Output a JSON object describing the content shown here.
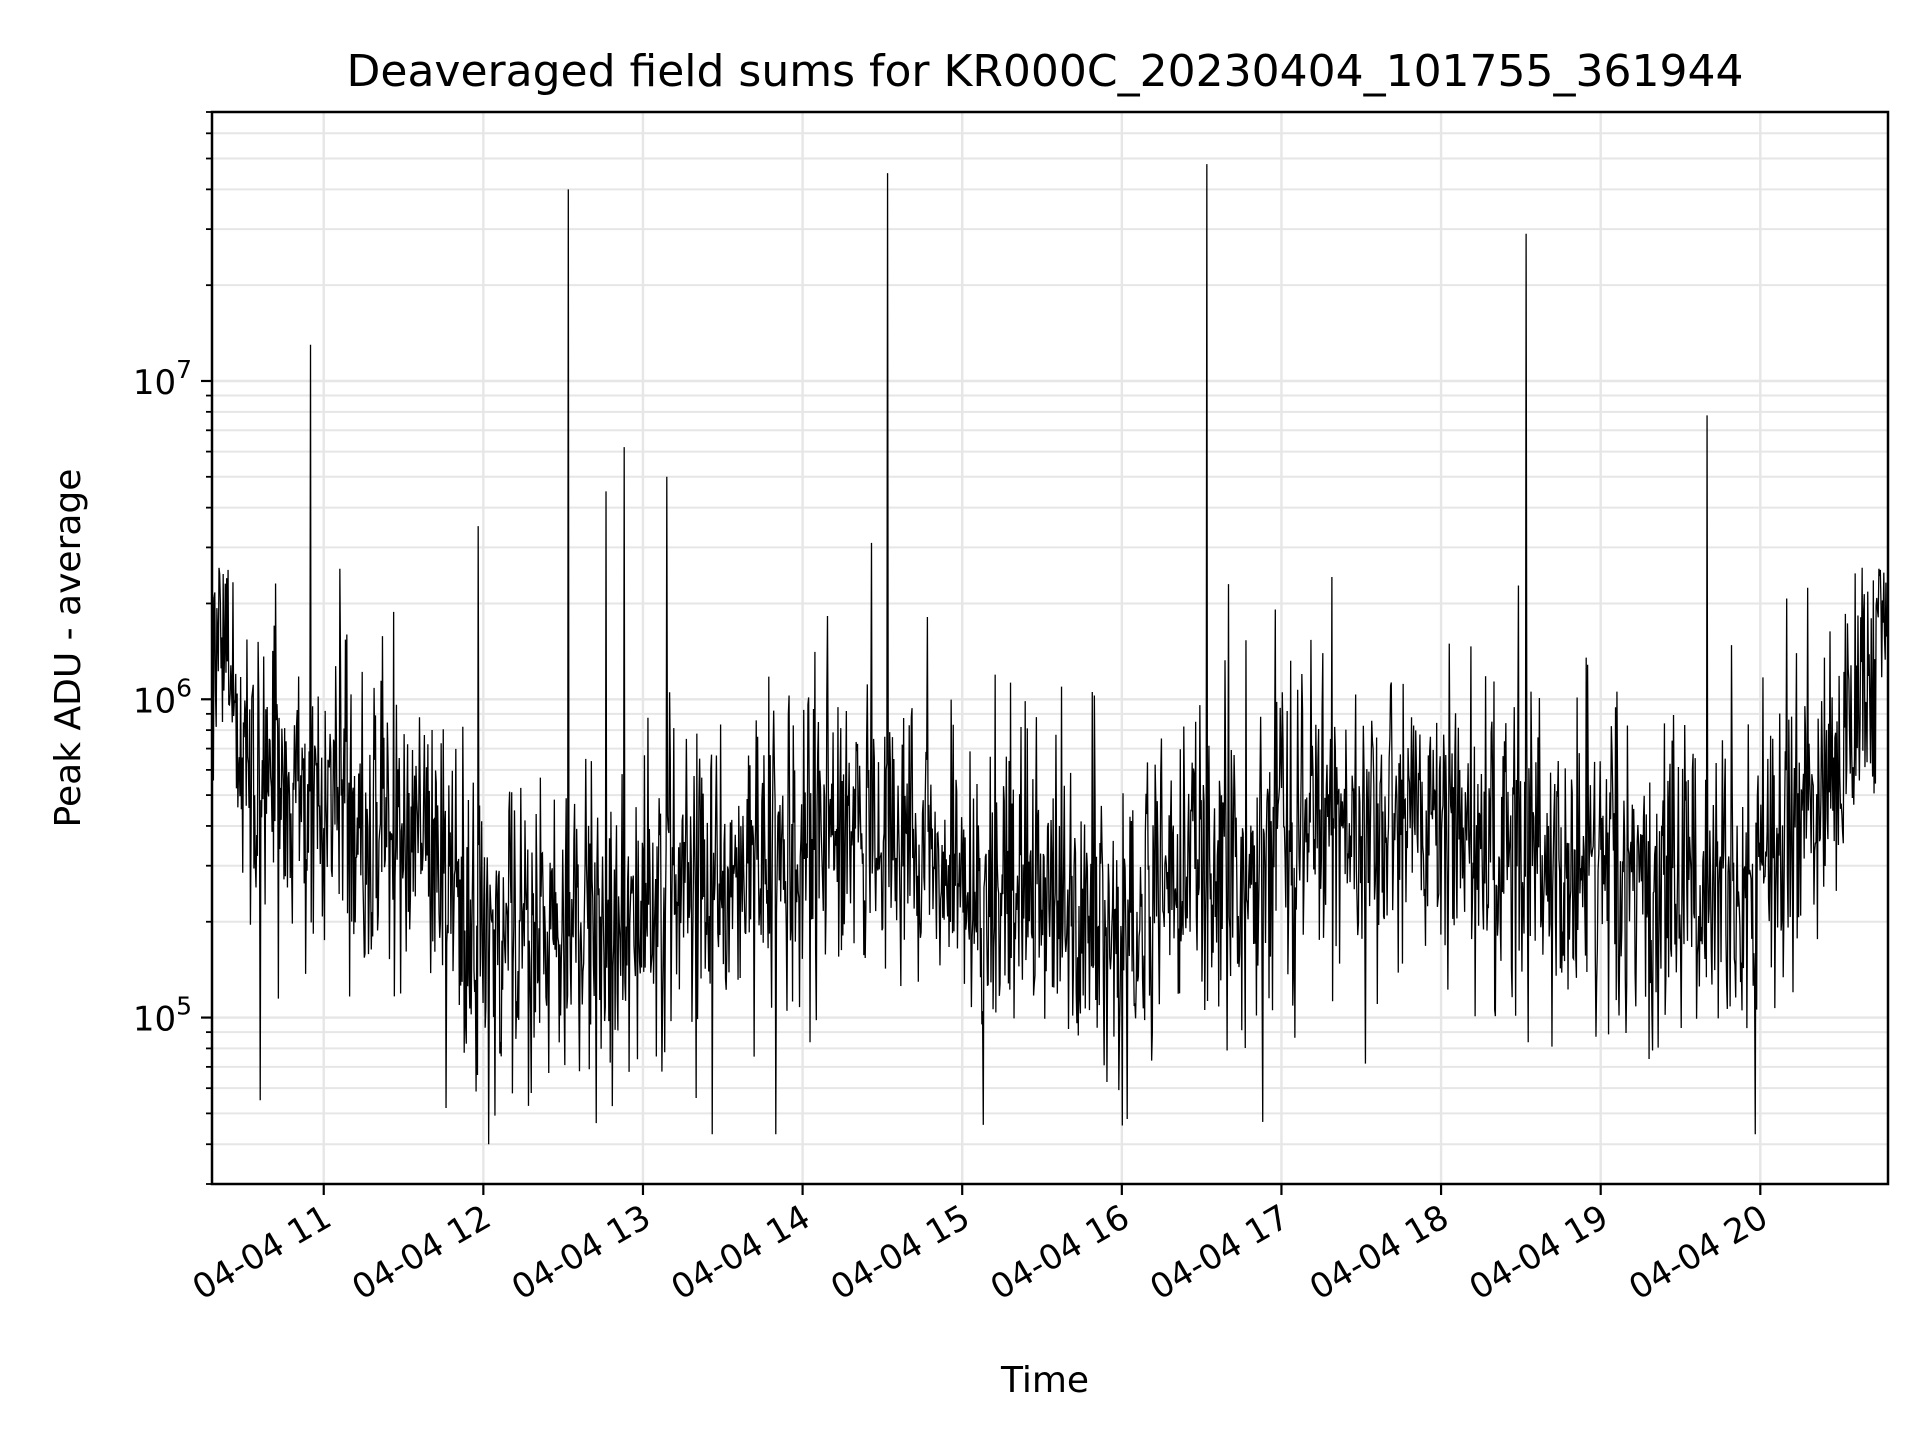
{
  "chart_data": {
    "type": "line",
    "title": "Deaveraged field sums for KR000C_20230404_101755_361944",
    "xlabel": "Time",
    "ylabel": "Peak ADU - average",
    "y_scale": "log",
    "ylim": [
      30000,
      70000000
    ],
    "xlim": [
      "2023-04-04 10:18",
      "2023-04-04 20:48"
    ],
    "grid": true,
    "grid_minor": true,
    "line_color": "#000000",
    "grid_color": "#e6e6e6",
    "x_ticks": [
      {
        "t": "2023-04-04 11:00",
        "label": "04-04 11"
      },
      {
        "t": "2023-04-04 12:00",
        "label": "04-04 12"
      },
      {
        "t": "2023-04-04 13:00",
        "label": "04-04 13"
      },
      {
        "t": "2023-04-04 14:00",
        "label": "04-04 14"
      },
      {
        "t": "2023-04-04 15:00",
        "label": "04-04 15"
      },
      {
        "t": "2023-04-04 16:00",
        "label": "04-04 16"
      },
      {
        "t": "2023-04-04 17:00",
        "label": "04-04 17"
      },
      {
        "t": "2023-04-04 18:00",
        "label": "04-04 18"
      },
      {
        "t": "2023-04-04 19:00",
        "label": "04-04 19"
      },
      {
        "t": "2023-04-04 20:00",
        "label": "04-04 20"
      }
    ],
    "y_ticks": [
      {
        "value": 100000,
        "base": "10",
        "exp": "5"
      },
      {
        "value": 1000000,
        "base": "10",
        "exp": "6"
      },
      {
        "value": 10000000,
        "base": "10",
        "exp": "7"
      }
    ],
    "spikes": [
      {
        "t": "2023-04-04 10:55",
        "value": 13000000
      },
      {
        "t": "2023-04-04 11:58",
        "value": 3500000
      },
      {
        "t": "2023-04-04 12:32",
        "value": 40000000
      },
      {
        "t": "2023-04-04 12:46",
        "value": 4500000
      },
      {
        "t": "2023-04-04 12:53",
        "value": 6200000
      },
      {
        "t": "2023-04-04 13:09",
        "value": 5000000
      },
      {
        "t": "2023-04-04 14:26",
        "value": 3100000
      },
      {
        "t": "2023-04-04 14:32",
        "value": 45000000
      },
      {
        "t": "2023-04-04 16:32",
        "value": 48000000
      },
      {
        "t": "2023-04-04 16:40",
        "value": 2300000
      },
      {
        "t": "2023-04-04 18:32",
        "value": 29000000
      },
      {
        "t": "2023-04-04 19:40",
        "value": 7800000
      }
    ],
    "dips": [
      {
        "t": "2023-04-04 10:36",
        "value": 55000
      },
      {
        "t": "2023-04-04 11:46",
        "value": 52000
      },
      {
        "t": "2023-04-04 12:02",
        "value": 40000
      },
      {
        "t": "2023-04-04 13:26",
        "value": 43000
      },
      {
        "t": "2023-04-04 13:50",
        "value": 43000
      },
      {
        "t": "2023-04-04 15:08",
        "value": 46000
      },
      {
        "t": "2023-04-04 16:02",
        "value": 48000
      },
      {
        "t": "2023-04-04 16:53",
        "value": 47000
      },
      {
        "t": "2023-04-04 19:58",
        "value": 43000
      }
    ],
    "baseline_profile": [
      {
        "t": "2023-04-04 10:18",
        "value": 1400000
      },
      {
        "t": "2023-04-04 10:24",
        "value": 1700000
      },
      {
        "t": "2023-04-04 10:30",
        "value": 600000
      },
      {
        "t": "2023-04-04 11:00",
        "value": 420000
      },
      {
        "t": "2023-04-04 11:30",
        "value": 380000
      },
      {
        "t": "2023-04-04 12:00",
        "value": 180000
      },
      {
        "t": "2023-04-04 12:30",
        "value": 200000
      },
      {
        "t": "2023-04-04 13:00",
        "value": 230000
      },
      {
        "t": "2023-04-04 13:30",
        "value": 280000
      },
      {
        "t": "2023-04-04 14:00",
        "value": 420000
      },
      {
        "t": "2023-04-04 14:30",
        "value": 380000
      },
      {
        "t": "2023-04-04 15:00",
        "value": 300000
      },
      {
        "t": "2023-04-04 15:30",
        "value": 250000
      },
      {
        "t": "2023-04-04 16:00",
        "value": 190000
      },
      {
        "t": "2023-04-04 16:30",
        "value": 300000
      },
      {
        "t": "2023-04-04 17:00",
        "value": 380000
      },
      {
        "t": "2023-04-04 17:30",
        "value": 420000
      },
      {
        "t": "2023-04-04 18:00",
        "value": 400000
      },
      {
        "t": "2023-04-04 18:30",
        "value": 330000
      },
      {
        "t": "2023-04-04 19:00",
        "value": 280000
      },
      {
        "t": "2023-04-04 19:30",
        "value": 250000
      },
      {
        "t": "2023-04-04 20:00",
        "value": 300000
      },
      {
        "t": "2023-04-04 20:30",
        "value": 700000
      },
      {
        "t": "2023-04-04 20:48",
        "value": 1700000
      }
    ]
  }
}
